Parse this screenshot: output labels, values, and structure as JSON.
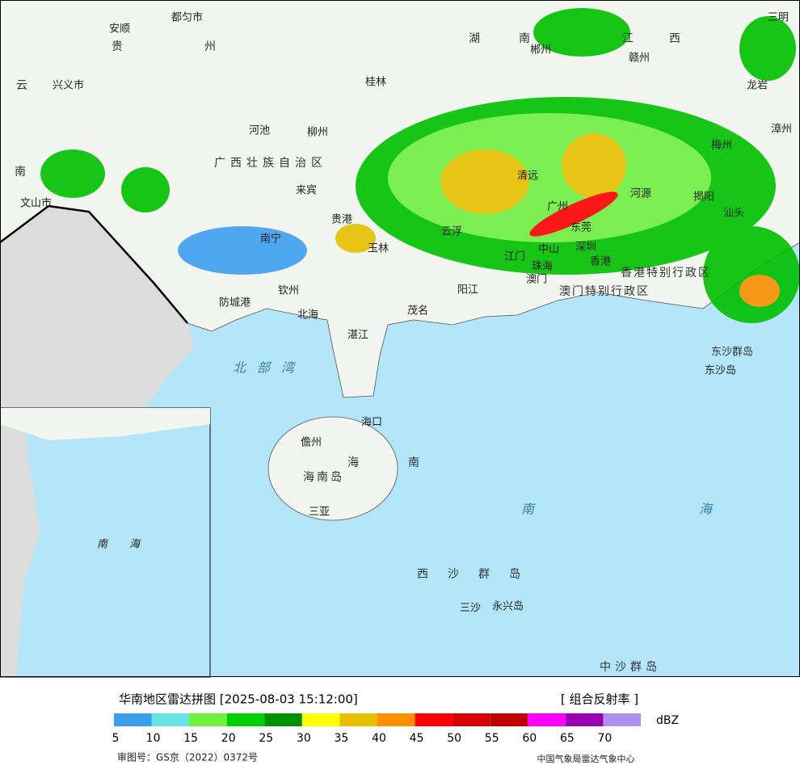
{
  "map": {
    "labels": [
      "都匀市",
      "安顺",
      "贵",
      "州",
      "湖",
      "南",
      "郴州",
      "江",
      "西",
      "赣州",
      "三明",
      "兴义市",
      "桂林",
      "龙岩",
      "云",
      "河池",
      "柳州",
      "梅州",
      "漳州",
      "南",
      "广西壮族自治区",
      "来宾",
      "清远",
      "广州",
      "河源",
      "揭阳",
      "汕头",
      "文山市",
      "贵港",
      "云浮",
      "南宁",
      "玉林",
      "东莞",
      "深圳",
      "江门",
      "中山",
      "珠海",
      "香港",
      "澳门",
      "香港特别行政区",
      "澳门特别行政区",
      "防城港",
      "钦州",
      "阳江",
      "北海",
      "茂名",
      "湛江",
      "北部湾",
      "东沙群岛",
      "东沙岛",
      "海口",
      "儋州",
      "海南岛",
      "海",
      "南",
      "三亚",
      "南",
      "海",
      "西沙群岛",
      "三沙",
      "永兴岛",
      "中沙群岛"
    ],
    "inset_labels": [
      "南",
      "海"
    ]
  },
  "legend": {
    "title": "华南地区雷达拼图 [2025-08-03 15:12:00]",
    "product": "[ 组合反射率 ]",
    "unit": "dBZ",
    "colors": [
      "#3d9ef0",
      "#66e3e3",
      "#6fef40",
      "#00d000",
      "#009000",
      "#ffff00",
      "#e6c000",
      "#ff9000",
      "#ff0000",
      "#d60000",
      "#c00000",
      "#ff00ff",
      "#9a00b4",
      "#ad90f0"
    ],
    "ticks": [
      5,
      10,
      15,
      20,
      25,
      30,
      35,
      40,
      45,
      50,
      55,
      60,
      65,
      70
    ]
  },
  "footer": {
    "review": "审图号：GS京（2022）0372号",
    "credit": "中国气象局雷达气象中心"
  }
}
